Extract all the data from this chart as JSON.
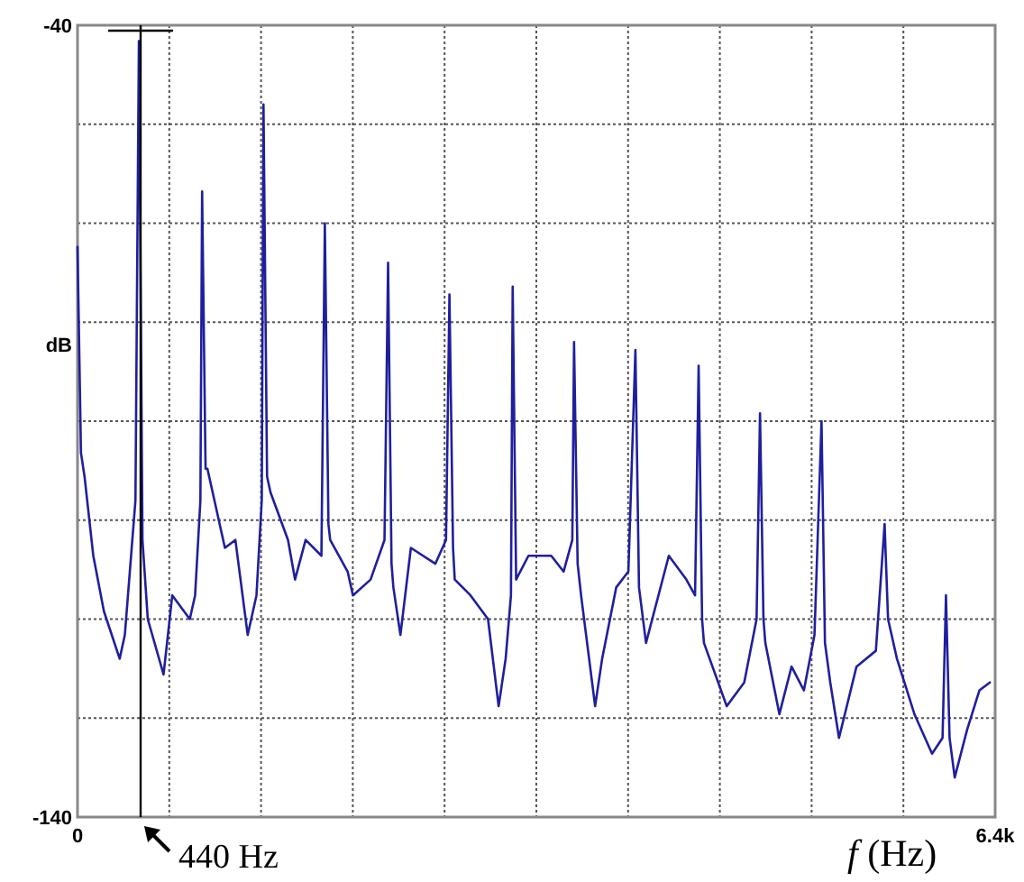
{
  "chart_data": {
    "type": "line",
    "xlabel": "f (Hz)",
    "ylabel": "dB",
    "xlim": [
      0,
      6400
    ],
    "ylim": [
      -140,
      -40
    ],
    "xticks": [
      0,
      {
        "value": 640,
        "label": null
      },
      {
        "value": 1280,
        "label": null
      },
      {
        "value": 1920,
        "label": null
      },
      {
        "value": 2560,
        "label": null
      },
      {
        "value": 3200,
        "label": null
      },
      {
        "value": 3840,
        "label": null
      },
      {
        "value": 4480,
        "label": null
      },
      {
        "value": 5120,
        "label": null
      },
      {
        "value": 5760,
        "label": null
      },
      {
        "value": 6400,
        "label": "6.4k"
      }
    ],
    "yticks": [
      -140,
      {
        "value": -127.5,
        "label": null
      },
      {
        "value": -115,
        "label": null
      },
      {
        "value": -102.5,
        "label": null
      },
      {
        "value": -90,
        "label": null
      },
      {
        "value": -77.5,
        "label": null
      },
      {
        "value": -65,
        "label": null
      },
      {
        "value": -52.5,
        "label": null
      },
      -40
    ],
    "grid": true,
    "line_style": "solid",
    "ref_lines": [
      {
        "axis": "x",
        "value": 440,
        "label": "440 Hz",
        "color": "#000000"
      }
    ],
    "series": [
      {
        "color": "#1f1f9e",
        "x": [
          0,
          24,
          49,
          110,
          184,
          294,
          330,
          404,
          428,
          453,
          490,
          600,
          661,
          783,
          820,
          857,
          869,
          893,
          906,
          1028,
          1101,
          1187,
          1248,
          1285,
          1297,
          1322,
          1346,
          1468,
          1517,
          1591,
          1701,
          1725,
          1750,
          1762,
          1884,
          1921,
          2044,
          2141,
          2166,
          2190,
          2203,
          2252,
          2325,
          2496,
          2570,
          2594,
          2619,
          2631,
          2741,
          2863,
          2937,
          2986,
          3023,
          3035,
          3059,
          3145,
          3304,
          3390,
          3451,
          3463,
          3488,
          3512,
          3610,
          3659,
          3757,
          3842,
          3891,
          3916,
          3965,
          4124,
          4246,
          4307,
          4332,
          4356,
          4369,
          4528,
          4650,
          4736,
          4760,
          4784,
          4797,
          4895,
          4980,
          5066,
          5140,
          5189,
          5213,
          5250,
          5311,
          5433,
          5568,
          5629,
          5653,
          5715,
          5837,
          5960,
          6033,
          6057,
          6082,
          6118,
          6204,
          6290,
          6363
        ],
        "values": [
          -68,
          -94,
          -97,
          -107,
          -114,
          -120,
          -117,
          -100,
          -42,
          -105,
          -115,
          -122,
          -112,
          -115,
          -112,
          -100,
          -61,
          -96,
          -96,
          -106,
          -105,
          -117,
          -112,
          -100,
          -50,
          -97,
          -99,
          -105,
          -110,
          -105,
          -107,
          -65,
          -103,
          -105,
          -109,
          -112,
          -110,
          -105,
          -70,
          -108,
          -111,
          -117,
          -106,
          -108,
          -105,
          -74,
          -106,
          -110,
          -112,
          -115,
          -126,
          -120,
          -112,
          -73,
          -110,
          -107,
          -107,
          -109,
          -105,
          -80,
          -108,
          -112,
          -126,
          -120,
          -111,
          -109,
          -81,
          -111,
          -118,
          -107,
          -110,
          -112,
          -83,
          -115,
          -118,
          -126,
          -123,
          -115,
          -89,
          -115,
          -118,
          -127,
          -121,
          -124,
          -117,
          -90,
          -118,
          -123,
          -130,
          -121,
          -119,
          -103,
          -115,
          -120,
          -127,
          -132,
          -130,
          -112,
          -130,
          -135,
          -129,
          -124,
          -123
        ]
      }
    ]
  }
}
